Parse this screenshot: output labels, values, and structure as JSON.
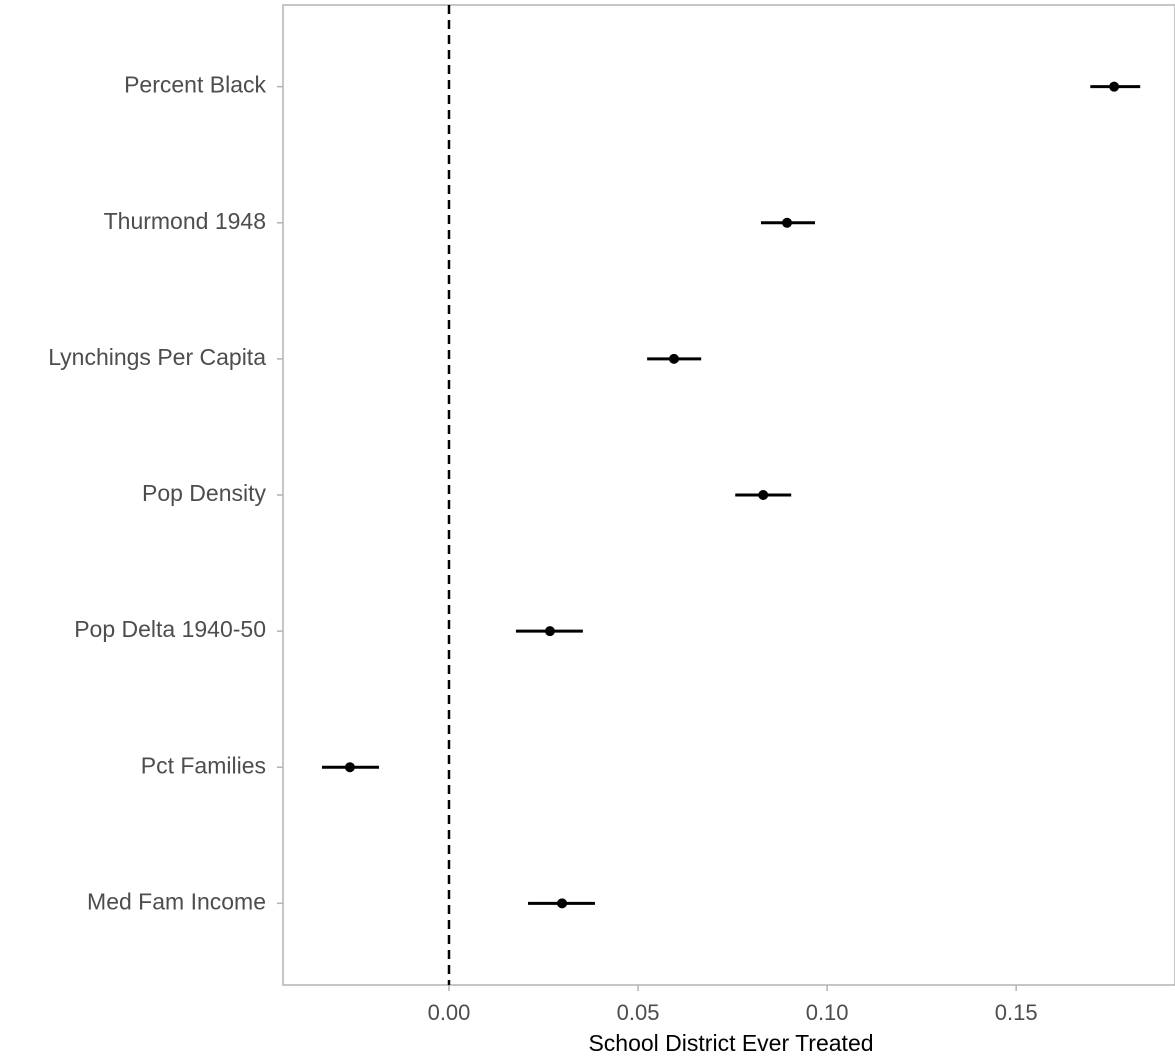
{
  "chart_data": {
    "type": "pointrange",
    "x_label": "School District Ever Treated",
    "categories": [
      "Percent Black",
      "Thurmond 1948",
      "Lynchings Per Capita",
      "Pop Density",
      "Pop Delta 1940-50",
      "Pct Families",
      "Med Fam Income"
    ],
    "values": [
      0.1759,
      0.0894,
      0.0595,
      0.0831,
      0.0267,
      -0.0262,
      0.0299
    ],
    "lower": [
      0.1696,
      0.0825,
      0.0524,
      0.0757,
      0.0177,
      -0.0336,
      0.0209
    ],
    "upper": [
      0.1828,
      0.0968,
      0.0667,
      0.0905,
      0.0354,
      -0.0185,
      0.0386
    ],
    "color": "#000000",
    "reference_line": 0,
    "xlim": [
      -0.0439,
      0.192
    ],
    "xticks": [
      {
        "value": 0,
        "label": "0.00"
      },
      0.05,
      {
        "value": 0.1,
        "label": "0.10"
      },
      0.15
    ]
  }
}
